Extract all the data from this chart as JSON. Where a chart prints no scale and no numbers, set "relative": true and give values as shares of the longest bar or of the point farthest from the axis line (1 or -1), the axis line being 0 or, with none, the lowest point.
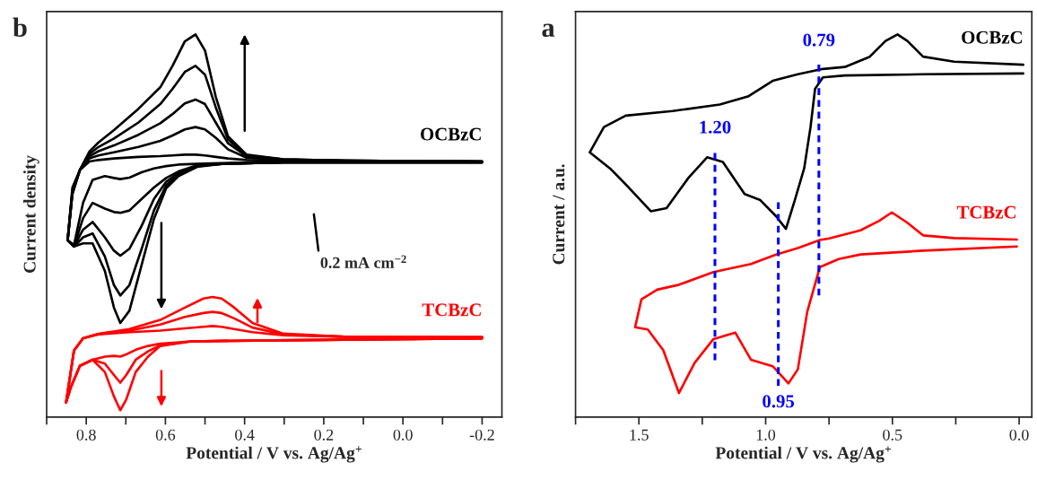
{
  "chart_data": [
    {
      "type": "line",
      "title": "b",
      "xlabel": "Potential / V vs. Ag/Ag$^{+}$",
      "ylabel": "Current density",
      "relative": true,
      "xlim": [
        0.9,
        -0.25
      ],
      "xticks": [
        {
          "value": 0.9,
          "label": null
        },
        0.8,
        {
          "value": 0.7,
          "label": null
        },
        0.6,
        {
          "value": 0.5,
          "label": null
        },
        0.4,
        {
          "value": 0.3,
          "label": null
        },
        0.2,
        {
          "value": 0.1,
          "label": null
        },
        {
          "value": 0.0,
          "label": "0.0"
        },
        {
          "value": -0.1,
          "label": null
        },
        -0.2
      ],
      "annotations": [
        "0.2 mA cm$^{−2}$"
      ],
      "series": [
        {
          "name": "OCBzC",
          "color": "#000000",
          "x": [
            -0.2,
            0.146,
            0.302,
            0.395,
            0.442,
            0.473,
            0.5,
            0.524,
            0.551,
            0.582,
            0.613,
            0.668,
            0.73,
            0.769,
            0.792,
            0.816,
            0.835,
            0.847,
            0.831,
            0.808,
            0.784,
            0.753,
            0.73,
            0.714,
            0.691,
            0.66,
            0.629,
            0.598,
            0.567,
            0.52,
            0.458,
            0.302,
            -0.2
          ],
          "values": [
            0.668,
            0.67,
            0.674,
            0.686,
            0.734,
            0.838,
            0.958,
            1.0,
            0.982,
            0.918,
            0.862,
            0.806,
            0.75,
            0.718,
            0.694,
            0.646,
            0.582,
            0.462,
            0.446,
            0.454,
            0.454,
            0.382,
            0.286,
            0.246,
            0.278,
            0.398,
            0.518,
            0.598,
            0.63,
            0.654,
            0.662,
            0.666,
            0.666
          ]
        },
        {
          "color": "#000000",
          "x": [
            -0.2,
            0.146,
            0.302,
            0.395,
            0.442,
            0.473,
            0.5,
            0.524,
            0.551,
            0.582,
            0.613,
            0.668,
            0.73,
            0.769,
            0.792,
            0.816,
            0.835,
            0.847,
            0.831,
            0.808,
            0.784,
            0.753,
            0.73,
            0.714,
            0.691,
            0.66,
            0.629,
            0.598,
            0.567,
            0.52,
            0.458,
            0.302,
            -0.2
          ],
          "values": [
            0.668,
            0.67,
            0.674,
            0.684,
            0.726,
            0.81,
            0.895,
            0.918,
            0.902,
            0.858,
            0.818,
            0.77,
            0.728,
            0.706,
            0.688,
            0.646,
            0.585,
            0.462,
            0.446,
            0.47,
            0.48,
            0.42,
            0.345,
            0.318,
            0.345,
            0.44,
            0.54,
            0.606,
            0.634,
            0.656,
            0.662,
            0.666,
            0.666
          ]
        },
        {
          "color": "#000000",
          "x": [
            -0.2,
            0.146,
            0.302,
            0.395,
            0.442,
            0.473,
            0.5,
            0.524,
            0.551,
            0.582,
            0.613,
            0.668,
            0.73,
            0.769,
            0.792,
            0.816,
            0.835,
            0.847,
            0.831,
            0.808,
            0.784,
            0.753,
            0.73,
            0.714,
            0.691,
            0.66,
            0.629,
            0.598,
            0.567,
            0.52,
            0.458,
            0.302,
            -0.2
          ],
          "values": [
            0.668,
            0.67,
            0.673,
            0.682,
            0.716,
            0.77,
            0.818,
            0.83,
            0.82,
            0.792,
            0.768,
            0.738,
            0.71,
            0.695,
            0.682,
            0.646,
            0.588,
            0.462,
            0.446,
            0.49,
            0.51,
            0.47,
            0.435,
            0.422,
            0.44,
            0.5,
            0.57,
            0.615,
            0.638,
            0.658,
            0.662,
            0.666,
            0.666
          ]
        },
        {
          "color": "#000000",
          "x": [
            -0.2,
            0.146,
            0.302,
            0.395,
            0.442,
            0.473,
            0.5,
            0.524,
            0.551,
            0.582,
            0.613,
            0.668,
            0.73,
            0.769,
            0.792,
            0.816,
            0.835,
            0.847,
            0.831,
            0.808,
            0.784,
            0.753,
            0.73,
            0.714,
            0.691,
            0.66,
            0.629,
            0.598,
            0.567,
            0.52,
            0.458,
            0.302,
            -0.2
          ],
          "values": [
            0.668,
            0.67,
            0.672,
            0.678,
            0.7,
            0.73,
            0.752,
            0.758,
            0.752,
            0.736,
            0.722,
            0.706,
            0.692,
            0.684,
            0.676,
            0.646,
            0.592,
            0.462,
            0.446,
            0.52,
            0.56,
            0.545,
            0.536,
            0.534,
            0.54,
            0.57,
            0.6,
            0.625,
            0.642,
            0.658,
            0.662,
            0.666,
            0.666
          ]
        },
        {
          "color": "#000000",
          "x": [
            -0.2,
            0.146,
            0.302,
            0.395,
            0.442,
            0.473,
            0.5,
            0.524,
            0.551,
            0.582,
            0.613,
            0.668,
            0.73,
            0.769,
            0.792,
            0.816,
            0.835,
            0.847,
            0.831,
            0.808,
            0.784,
            0.753,
            0.73,
            0.714,
            0.691,
            0.66,
            0.629,
            0.598,
            0.567,
            0.52,
            0.458,
            0.302,
            -0.2
          ],
          "values": [
            0.668,
            0.668,
            0.67,
            0.672,
            0.676,
            0.68,
            0.684,
            0.686,
            0.686,
            0.684,
            0.682,
            0.68,
            0.676,
            0.672,
            0.668,
            0.646,
            0.6,
            0.462,
            0.45,
            0.56,
            0.62,
            0.63,
            0.625,
            0.622,
            0.626,
            0.64,
            0.65,
            0.656,
            0.66,
            0.662,
            0.664,
            0.666,
            0.666
          ]
        },
        {
          "name": "TCBzC",
          "color": "#ff0000",
          "x": [
            -0.2,
            0.146,
            0.302,
            0.38,
            0.426,
            0.458,
            0.481,
            0.504,
            0.551,
            0.613,
            0.691,
            0.769,
            0.808,
            0.831,
            0.851,
            0.839,
            0.816,
            0.784,
            0.753,
            0.73,
            0.714,
            0.699,
            0.675,
            0.644,
            0.613,
            0.535,
            0.38,
            -0.2
          ],
          "values": [
            0.209,
            0.21,
            0.218,
            0.246,
            0.286,
            0.31,
            0.314,
            0.31,
            0.286,
            0.254,
            0.23,
            0.218,
            0.206,
            0.174,
            0.038,
            0.078,
            0.134,
            0.15,
            0.118,
            0.054,
            0.018,
            0.046,
            0.118,
            0.158,
            0.186,
            0.198,
            0.2,
            0.206
          ]
        },
        {
          "color": "#ff0000",
          "x": [
            -0.2,
            0.146,
            0.302,
            0.38,
            0.426,
            0.458,
            0.481,
            0.504,
            0.551,
            0.613,
            0.691,
            0.769,
            0.808,
            0.831,
            0.851,
            0.839,
            0.816,
            0.784,
            0.753,
            0.73,
            0.714,
            0.699,
            0.675,
            0.644,
            0.613,
            0.535,
            0.38,
            -0.2
          ],
          "values": [
            0.209,
            0.21,
            0.216,
            0.234,
            0.258,
            0.272,
            0.275,
            0.272,
            0.262,
            0.242,
            0.226,
            0.217,
            0.206,
            0.174,
            0.038,
            0.078,
            0.134,
            0.15,
            0.14,
            0.11,
            0.09,
            0.11,
            0.15,
            0.172,
            0.188,
            0.198,
            0.2,
            0.206
          ]
        },
        {
          "color": "#ff0000",
          "x": [
            -0.2,
            0.146,
            0.302,
            0.38,
            0.426,
            0.458,
            0.481,
            0.504,
            0.551,
            0.613,
            0.691,
            0.769,
            0.808,
            0.831,
            0.851,
            0.839,
            0.816,
            0.784,
            0.753,
            0.73,
            0.714,
            0.699,
            0.675,
            0.644,
            0.613,
            0.535,
            0.38,
            -0.2
          ],
          "values": [
            0.209,
            0.21,
            0.214,
            0.222,
            0.23,
            0.236,
            0.238,
            0.236,
            0.232,
            0.226,
            0.222,
            0.216,
            0.206,
            0.174,
            0.038,
            0.078,
            0.134,
            0.15,
            0.158,
            0.16,
            0.158,
            0.164,
            0.176,
            0.186,
            0.192,
            0.198,
            0.2,
            0.206
          ]
        }
      ]
    },
    {
      "type": "line",
      "title": "a",
      "xlabel": "Potential / V vs. Ag/Ag$^{+}$",
      "ylabel": "Current / a.u.",
      "relative": true,
      "xlim": [
        1.75,
        -0.05
      ],
      "xticks": [
        {
          "value": 1.75,
          "label": null
        },
        1.5,
        {
          "value": 1.25,
          "label": null
        },
        {
          "value": 1.0,
          "label": "1.0"
        },
        {
          "value": 0.75,
          "label": null
        },
        0.5,
        {
          "value": 0.25,
          "label": null
        },
        {
          "value": 0.0,
          "label": "0.0"
        }
      ],
      "ref_lines": [
        {
          "axis": "x",
          "value": 1.2,
          "label": "1.20",
          "color": "#0000ff",
          "line_style": "dashed"
        },
        {
          "axis": "x",
          "value": 0.95,
          "label": "0.95",
          "color": "#0000ff",
          "line_style": "dashed"
        },
        {
          "axis": "x",
          "value": 0.79,
          "label": "0.79",
          "color": "#0000ff",
          "line_style": "dashed"
        }
      ],
      "series": [
        {
          "name": "OCBzC",
          "color": "#000000",
          "x": [
            -0.016,
            0.256,
            0.379,
            0.441,
            0.48,
            0.527,
            0.589,
            0.688,
            0.774,
            0.873,
            0.972,
            1.07,
            1.181,
            1.367,
            1.552,
            1.638,
            1.694,
            1.614,
            1.54,
            1.453,
            1.391,
            1.305,
            1.231,
            1.169,
            1.083,
            1.021,
            0.959,
            0.92,
            0.885,
            0.848,
            0.823,
            0.805,
            0.774,
            0.688,
            0.379,
            -0.016
          ],
          "values": [
            0.921,
            0.929,
            0.942,
            0.983,
            1.0,
            0.983,
            0.942,
            0.915,
            0.91,
            0.896,
            0.879,
            0.838,
            0.817,
            0.8,
            0.788,
            0.758,
            0.692,
            0.65,
            0.6,
            0.538,
            0.546,
            0.625,
            0.679,
            0.667,
            0.583,
            0.567,
            0.525,
            0.492,
            0.567,
            0.65,
            0.758,
            0.858,
            0.888,
            0.893,
            0.896,
            0.898
          ]
        },
        {
          "name": "TCBzC",
          "color": "#ff0000",
          "x": [
            0.009,
            0.256,
            0.379,
            0.441,
            0.502,
            0.552,
            0.626,
            0.749,
            0.786,
            0.873,
            0.959,
            1.058,
            1.206,
            1.342,
            1.428,
            1.49,
            1.515,
            1.465,
            1.404,
            1.342,
            1.28,
            1.206,
            1.12,
            1.058,
            0.972,
            0.91,
            0.873,
            0.836,
            0.786,
            0.712,
            0.626,
            0.379,
            0.009
          ],
          "values": [
            0.464,
            0.468,
            0.475,
            0.508,
            0.535,
            0.513,
            0.488,
            0.467,
            0.463,
            0.442,
            0.425,
            0.4,
            0.379,
            0.346,
            0.333,
            0.308,
            0.235,
            0.229,
            0.175,
            0.063,
            0.142,
            0.204,
            0.221,
            0.15,
            0.133,
            0.088,
            0.125,
            0.275,
            0.392,
            0.413,
            0.425,
            0.435,
            0.446
          ]
        }
      ]
    }
  ]
}
